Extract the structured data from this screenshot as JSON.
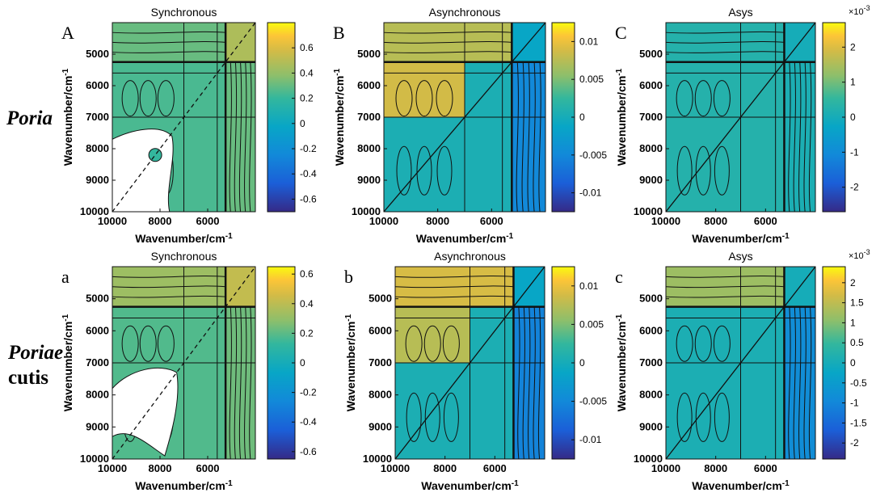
{
  "figure": {
    "row_labels": [
      {
        "italic": "Poria",
        "plain": ""
      },
      {
        "italic": "Poriae",
        "plain": "cutis"
      }
    ]
  },
  "chart_data": [
    {
      "type": "heatmap",
      "panel_letter": "A",
      "title": "Synchronous",
      "xlabel": "Wavenumber/cm",
      "ylabel": "Wavenumber/cm",
      "unit_exponent": "-1",
      "xlim": [
        10000,
        4000
      ],
      "ylim": [
        4000,
        10000
      ],
      "xticks": [
        10000,
        8000,
        6000
      ],
      "yticks": [
        5000,
        6000,
        7000,
        8000,
        9000,
        10000
      ],
      "colorbar": {
        "min": -0.7,
        "max": 0.8,
        "ticks": [
          0.6,
          0.4,
          0.2,
          0,
          -0.2,
          -0.4,
          -0.6
        ],
        "tick_labels": [
          "0.6",
          "0.4",
          "0.2",
          "0",
          "-0.2",
          "-0.4",
          "-0.6"
        ],
        "exponent": ""
      },
      "band_boundaries": [
        5250,
        7000,
        5600
      ],
      "blank_region": true,
      "diagonal": "dashed"
    },
    {
      "type": "heatmap",
      "panel_letter": "B",
      "title": "Asynchronous",
      "xlabel": "Wavenumber/cm",
      "ylabel": "Wavenumber/cm",
      "unit_exponent": "-1",
      "xlim": [
        10000,
        4000
      ],
      "ylim": [
        4000,
        10000
      ],
      "xticks": [
        10000,
        8000,
        6000
      ],
      "yticks": [
        5000,
        6000,
        7000,
        8000,
        9000,
        10000
      ],
      "colorbar": {
        "min": -0.0125,
        "max": 0.0125,
        "ticks": [
          0.01,
          0.005,
          0,
          -0.005,
          -0.01
        ],
        "tick_labels": [
          "0.01",
          "0.005",
          "0",
          "-0.005",
          "-0.01"
        ],
        "exponent": ""
      },
      "band_boundaries": [
        5250,
        7000,
        5600
      ],
      "blank_region": false,
      "diagonal": "solid"
    },
    {
      "type": "heatmap",
      "panel_letter": "C",
      "title": "Asys",
      "xlabel": "Wavenumber/cm",
      "ylabel": "Wavenumber/cm",
      "unit_exponent": "-1",
      "xlim": [
        10000,
        4000
      ],
      "ylim": [
        4000,
        10000
      ],
      "xticks": [
        10000,
        8000,
        6000
      ],
      "yticks": [
        5000,
        6000,
        7000,
        8000,
        9000,
        10000
      ],
      "colorbar": {
        "min": -2.7,
        "max": 2.7,
        "ticks": [
          2,
          1,
          0,
          -1,
          -2
        ],
        "tick_labels": [
          "2",
          "1",
          "0",
          "-1",
          "-2"
        ],
        "exponent": "×10-3"
      },
      "band_boundaries": [
        5250,
        7000,
        5600
      ],
      "blank_region": false,
      "diagonal": "solid"
    },
    {
      "type": "heatmap",
      "panel_letter": "a",
      "title": "Synchronous",
      "xlabel": "Wavenumber/cm",
      "ylabel": "Wavenumber/cm",
      "unit_exponent": "-1",
      "xlim": [
        10000,
        4000
      ],
      "ylim": [
        4000,
        10000
      ],
      "xticks": [
        10000,
        8000,
        6000
      ],
      "yticks": [
        5000,
        6000,
        7000,
        8000,
        9000,
        10000
      ],
      "colorbar": {
        "min": -0.65,
        "max": 0.65,
        "ticks": [
          0.6,
          0.4,
          0.2,
          0,
          -0.2,
          -0.4,
          -0.6
        ],
        "tick_labels": [
          "0.6",
          "0.4",
          "0.2",
          "0",
          "-0.2",
          "-0.4",
          "-0.6"
        ],
        "exponent": ""
      },
      "band_boundaries": [
        5250,
        7000,
        5600
      ],
      "blank_region": true,
      "diagonal": "dashed"
    },
    {
      "type": "heatmap",
      "panel_letter": "b",
      "title": "Asynchronous",
      "xlabel": "Wavenumber/cm",
      "ylabel": "Wavenumber/cm",
      "unit_exponent": "-1",
      "xlim": [
        10000,
        4000
      ],
      "ylim": [
        4000,
        10000
      ],
      "xticks": [
        10000,
        8000,
        6000
      ],
      "yticks": [
        5000,
        6000,
        7000,
        8000,
        9000,
        10000
      ],
      "colorbar": {
        "min": -0.0125,
        "max": 0.0125,
        "ticks": [
          0.01,
          0.005,
          0,
          -0.005,
          -0.01
        ],
        "tick_labels": [
          "0.01",
          "0.005",
          "0",
          "-0.005",
          "-0.01"
        ],
        "exponent": ""
      },
      "band_boundaries": [
        5250,
        7000,
        5600
      ],
      "blank_region": false,
      "diagonal": "solid"
    },
    {
      "type": "heatmap",
      "panel_letter": "c",
      "title": "Asys",
      "xlabel": "Wavenumber/cm",
      "ylabel": "Wavenumber/cm",
      "unit_exponent": "-1",
      "xlim": [
        10000,
        4000
      ],
      "ylim": [
        4000,
        10000
      ],
      "xticks": [
        10000,
        8000,
        6000
      ],
      "yticks": [
        5000,
        6000,
        7000,
        8000,
        9000,
        10000
      ],
      "colorbar": {
        "min": -2.4,
        "max": 2.4,
        "ticks": [
          2,
          1.5,
          1,
          0.5,
          0,
          -0.5,
          -1,
          -1.5,
          -2
        ],
        "tick_labels": [
          "2",
          "1.5",
          "1",
          "0.5",
          "0",
          "-0.5",
          "-1",
          "-1.5",
          "-2"
        ],
        "exponent": "×10-3"
      },
      "band_boundaries": [
        5250,
        7000,
        5600
      ],
      "blank_region": false,
      "diagonal": "solid"
    }
  ]
}
